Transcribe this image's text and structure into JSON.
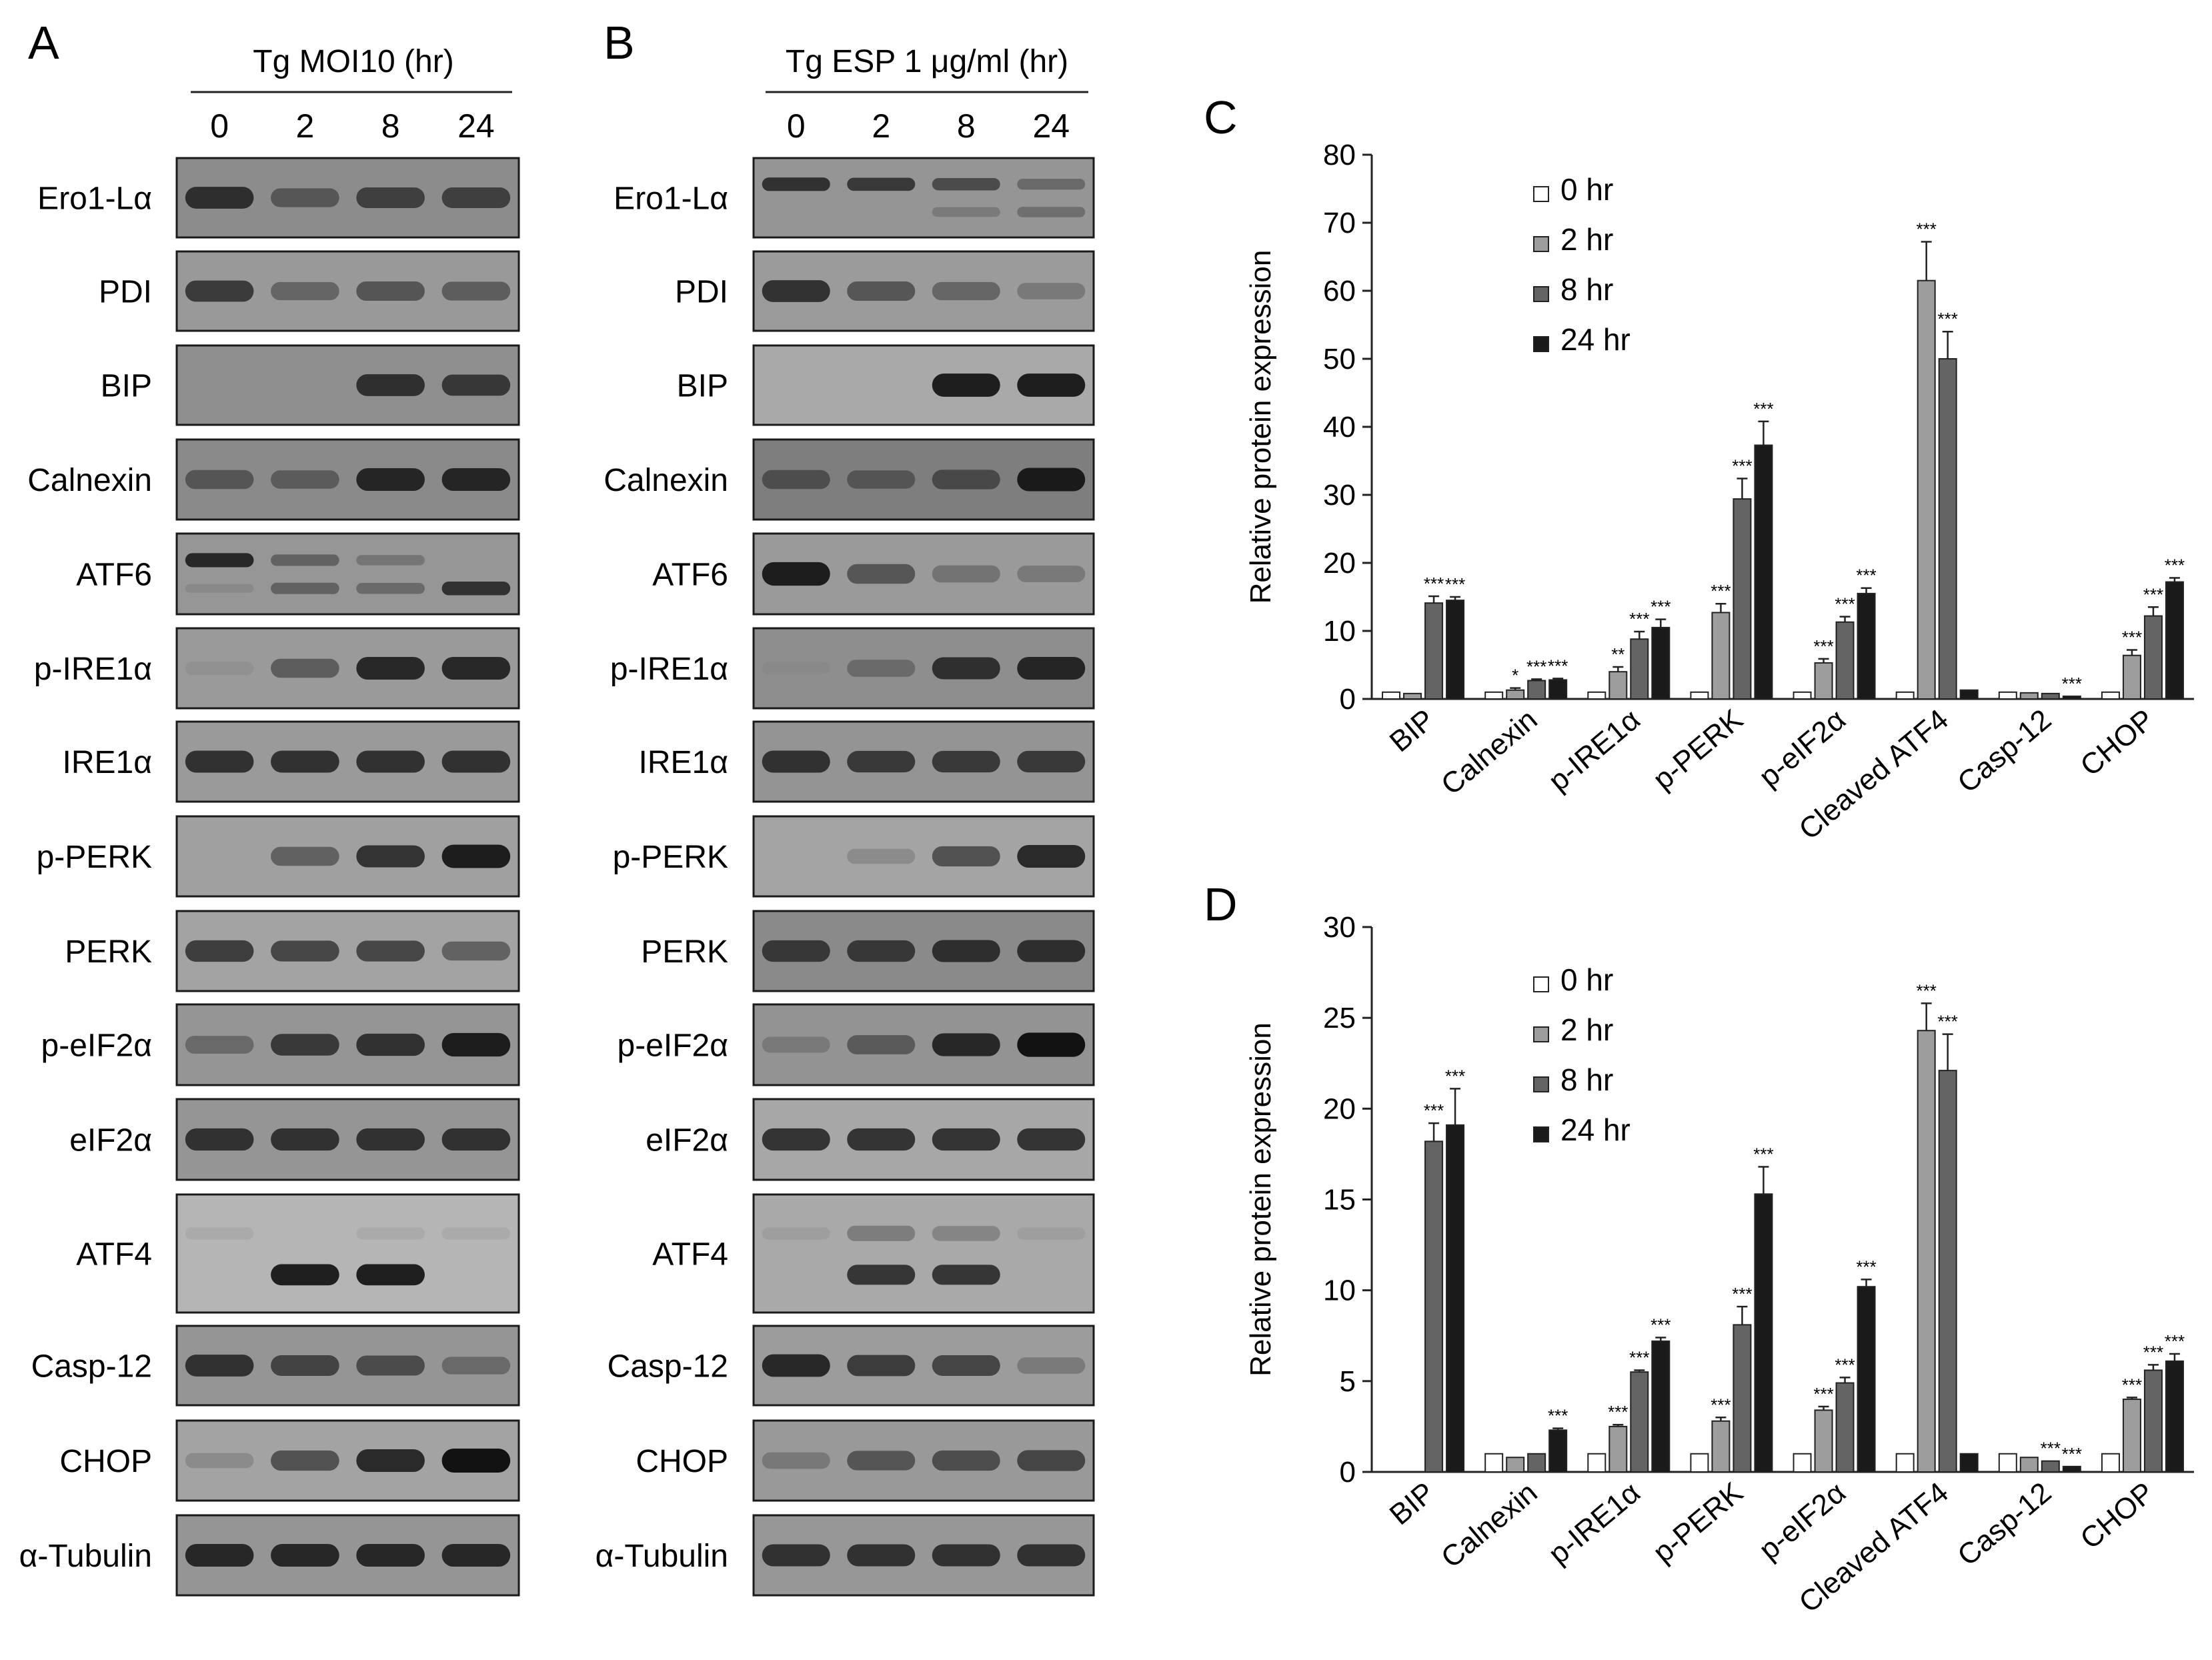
{
  "blot_panels": [
    {
      "label": "A",
      "header": "Tg MOI10 (hr)",
      "timepoints": [
        "0",
        "2",
        "8",
        "24"
      ],
      "rows": [
        {
          "label": "Ero1-Lα",
          "bg": "#8c8c8c",
          "bands": [
            [
              0.85
            ],
            [
              0.6
            ],
            [
              0.75
            ],
            [
              0.75
            ]
          ]
        },
        {
          "label": "PDI",
          "bg": "#999999",
          "bands": [
            [
              0.8
            ],
            [
              0.55
            ],
            [
              0.65
            ],
            [
              0.6
            ]
          ]
        },
        {
          "label": "BIP",
          "bg": "#8f8f8f",
          "bands": [
            [
              0
            ],
            [
              0
            ],
            [
              0.85
            ],
            [
              0.8
            ]
          ]
        },
        {
          "label": "Calnexin",
          "bg": "#8a8a8a",
          "bands": [
            [
              0.6
            ],
            [
              0.55
            ],
            [
              0.9
            ],
            [
              0.9
            ]
          ]
        },
        {
          "label": "ATF6",
          "bg": "#969696",
          "bands": [
            [
              0.9,
              0.2
            ],
            [
              0.55,
              0.55
            ],
            [
              0.4,
              0.5
            ],
            [
              0,
              0.85
            ]
          ]
        },
        {
          "label": "p-IRE1α",
          "bg": "#9a9a9a",
          "bands": [
            [
              0.15
            ],
            [
              0.6
            ],
            [
              0.9
            ],
            [
              0.9
            ]
          ]
        },
        {
          "label": "IRE1α",
          "bg": "#9a9a9a",
          "bands": [
            [
              0.85
            ],
            [
              0.85
            ],
            [
              0.85
            ],
            [
              0.85
            ]
          ]
        },
        {
          "label": "p-PERK",
          "bg": "#a0a0a0",
          "bands": [
            [
              0
            ],
            [
              0.6
            ],
            [
              0.85
            ],
            [
              0.95
            ]
          ]
        },
        {
          "label": "PERK",
          "bg": "#a3a3a3",
          "bands": [
            [
              0.8
            ],
            [
              0.75
            ],
            [
              0.75
            ],
            [
              0.6
            ]
          ]
        },
        {
          "label": "p-eIF2α",
          "bg": "#959595",
          "bands": [
            [
              0.5
            ],
            [
              0.8
            ],
            [
              0.85
            ],
            [
              0.95
            ]
          ]
        },
        {
          "label": "eIF2α",
          "bg": "#959595",
          "bands": [
            [
              0.85
            ],
            [
              0.85
            ],
            [
              0.85
            ],
            [
              0.85
            ]
          ]
        },
        {
          "label": "ATF4",
          "bg": "#b5b5b5",
          "bands": [
            [
              0.15,
              0
            ],
            [
              0,
              0.95
            ],
            [
              0.15,
              0.95
            ],
            [
              0.15,
              0
            ]
          ]
        },
        {
          "label": "Casp-12",
          "bg": "#959595",
          "bands": [
            [
              0.85
            ],
            [
              0.75
            ],
            [
              0.7
            ],
            [
              0.5
            ]
          ]
        },
        {
          "label": "CHOP",
          "bg": "#a3a3a3",
          "bands": [
            [
              0.3
            ],
            [
              0.7
            ],
            [
              0.9
            ],
            [
              1.0
            ]
          ]
        },
        {
          "label": "α-Tubulin",
          "bg": "#959595",
          "bands": [
            [
              0.9
            ],
            [
              0.9
            ],
            [
              0.9
            ],
            [
              0.9
            ]
          ]
        }
      ]
    },
    {
      "label": "B",
      "header": "Tg ESP 1 μg/ml (hr)",
      "timepoints": [
        "0",
        "2",
        "8",
        "24"
      ],
      "rows": [
        {
          "label": "Ero1-Lα",
          "bg": "#959595",
          "bands": [
            [
              0.85,
              0
            ],
            [
              0.8,
              0
            ],
            [
              0.7,
              0.35
            ],
            [
              0.5,
              0.45
            ]
          ]
        },
        {
          "label": "PDI",
          "bg": "#9b9b9b",
          "bands": [
            [
              0.85
            ],
            [
              0.65
            ],
            [
              0.55
            ],
            [
              0.4
            ]
          ]
        },
        {
          "label": "BIP",
          "bg": "#a9a9a9",
          "bands": [
            [
              0
            ],
            [
              0
            ],
            [
              0.95
            ],
            [
              0.95
            ]
          ]
        },
        {
          "label": "Calnexin",
          "bg": "#7e7e7e",
          "bands": [
            [
              0.6
            ],
            [
              0.55
            ],
            [
              0.65
            ],
            [
              0.95
            ]
          ]
        },
        {
          "label": "ATF6",
          "bg": "#9a9a9a",
          "bands": [
            [
              0.95
            ],
            [
              0.65
            ],
            [
              0.45
            ],
            [
              0.4
            ]
          ]
        },
        {
          "label": "p-IRE1α",
          "bg": "#8e8e8e",
          "bands": [
            [
              0.1
            ],
            [
              0.45
            ],
            [
              0.85
            ],
            [
              0.9
            ]
          ]
        },
        {
          "label": "IRE1α",
          "bg": "#949494",
          "bands": [
            [
              0.85
            ],
            [
              0.8
            ],
            [
              0.8
            ],
            [
              0.8
            ]
          ]
        },
        {
          "label": "p-PERK",
          "bg": "#a4a4a4",
          "bands": [
            [
              0
            ],
            [
              0.3
            ],
            [
              0.7
            ],
            [
              0.9
            ]
          ]
        },
        {
          "label": "PERK",
          "bg": "#8a8a8a",
          "bands": [
            [
              0.8
            ],
            [
              0.8
            ],
            [
              0.85
            ],
            [
              0.85
            ]
          ]
        },
        {
          "label": "p-eIF2α",
          "bg": "#939393",
          "bands": [
            [
              0.35
            ],
            [
              0.6
            ],
            [
              0.9
            ],
            [
              1.0
            ]
          ]
        },
        {
          "label": "eIF2α",
          "bg": "#a7a7a7",
          "bands": [
            [
              0.85
            ],
            [
              0.85
            ],
            [
              0.85
            ],
            [
              0.85
            ]
          ]
        },
        {
          "label": "ATF4",
          "bg": "#a9a9a9",
          "bands": [
            [
              0.15,
              0
            ],
            [
              0.45,
              0.85
            ],
            [
              0.4,
              0.85
            ],
            [
              0.15,
              0
            ]
          ]
        },
        {
          "label": "Casp-12",
          "bg": "#9c9c9c",
          "bands": [
            [
              0.9
            ],
            [
              0.8
            ],
            [
              0.75
            ],
            [
              0.4
            ]
          ]
        },
        {
          "label": "CHOP",
          "bg": "#999999",
          "bands": [
            [
              0.4
            ],
            [
              0.65
            ],
            [
              0.7
            ],
            [
              0.75
            ]
          ]
        },
        {
          "label": "α-Tubulin",
          "bg": "#979797",
          "bands": [
            [
              0.85
            ],
            [
              0.85
            ],
            [
              0.85
            ],
            [
              0.85
            ]
          ]
        }
      ]
    }
  ],
  "chart_data": [
    {
      "label": "C",
      "type": "bar",
      "ylabel": "Relative protein expression",
      "ylim": [
        0,
        80
      ],
      "yticks": [
        0,
        10,
        20,
        30,
        40,
        50,
        60,
        70,
        80
      ],
      "categories": [
        "BIP",
        "Calnexin",
        "p-IRE1α",
        "p-PERK",
        "p-eIF2α",
        "Cleaved ATF4",
        "Casp-12",
        "CHOP"
      ],
      "legend_position": "top-left",
      "series": [
        {
          "name": "0 hr",
          "color": "#ffffff",
          "values": [
            1,
            1,
            1,
            1,
            1,
            1,
            1,
            1
          ],
          "errors": [
            0,
            0,
            0,
            0,
            0,
            0,
            0,
            0
          ],
          "sig": [
            "",
            "",
            "",
            "",
            "",
            "",
            "",
            ""
          ]
        },
        {
          "name": "2 hr",
          "color": "#9d9d9d",
          "values": [
            0.8,
            1.3,
            4.0,
            12.7,
            5.3,
            61.5,
            0.9,
            6.4
          ],
          "errors": [
            0,
            0.3,
            0.7,
            1.3,
            0.6,
            5.7,
            0,
            0.8
          ],
          "sig": [
            "",
            "*",
            "**",
            "***",
            "***",
            "***",
            "",
            "***"
          ]
        },
        {
          "name": "8 hr",
          "color": "#646464",
          "values": [
            14.1,
            2.7,
            8.8,
            29.4,
            11.3,
            50.0,
            0.8,
            12.2
          ],
          "errors": [
            1.0,
            0.2,
            1.1,
            3.0,
            0.8,
            4.0,
            0,
            1.3
          ],
          "sig": [
            "***",
            "***",
            "***",
            "***",
            "***",
            "***",
            "",
            "***"
          ]
        },
        {
          "name": "24 hr",
          "color": "#1a1a1a",
          "values": [
            14.5,
            2.8,
            10.5,
            37.3,
            15.5,
            1.3,
            0.4,
            17.2
          ],
          "errors": [
            0.5,
            0.2,
            1.2,
            3.5,
            0.8,
            0,
            0,
            0.6
          ],
          "sig": [
            "***",
            "***",
            "***",
            "***",
            "***",
            "",
            "***",
            "***"
          ]
        }
      ]
    },
    {
      "label": "D",
      "type": "bar",
      "ylabel": "Relative protein expression",
      "ylim": [
        0,
        30
      ],
      "yticks": [
        0,
        5,
        10,
        15,
        20,
        25,
        30
      ],
      "categories": [
        "BIP",
        "Calnexin",
        "p-IRE1α",
        "p-PERK",
        "p-eIF2α",
        "Cleaved ATF4",
        "Casp-12",
        "CHOP"
      ],
      "legend_position": "top-left",
      "series": [
        {
          "name": "0 hr",
          "color": "#ffffff",
          "values": [
            0,
            1,
            1,
            1,
            1,
            1,
            1,
            1
          ],
          "errors": [
            0,
            0,
            0,
            0,
            0,
            0,
            0,
            0
          ],
          "sig": [
            "",
            "",
            "",
            "",
            "",
            "",
            "",
            ""
          ]
        },
        {
          "name": "2 hr",
          "color": "#9d9d9d",
          "values": [
            0,
            0.8,
            2.5,
            2.8,
            3.4,
            24.3,
            0.8,
            4.0
          ],
          "errors": [
            0,
            0,
            0.1,
            0.2,
            0.2,
            1.5,
            0,
            0.1
          ],
          "sig": [
            "",
            "",
            "***",
            "***",
            "***",
            "***",
            "",
            "***"
          ]
        },
        {
          "name": "8 hr",
          "color": "#646464",
          "values": [
            18.2,
            1.0,
            5.5,
            8.1,
            4.9,
            22.1,
            0.6,
            5.6
          ],
          "errors": [
            1.0,
            0,
            0.1,
            1.0,
            0.3,
            2.0,
            0,
            0.3
          ],
          "sig": [
            "***",
            "",
            "***",
            "***",
            "***",
            "***",
            "***",
            "***"
          ]
        },
        {
          "name": "24 hr",
          "color": "#1a1a1a",
          "values": [
            19.1,
            2.3,
            7.2,
            15.3,
            10.2,
            1.0,
            0.3,
            6.1
          ],
          "errors": [
            2.0,
            0.1,
            0.2,
            1.5,
            0.4,
            0,
            0,
            0.4
          ],
          "sig": [
            "***",
            "***",
            "***",
            "***",
            "***",
            "",
            "***",
            "***"
          ]
        }
      ]
    }
  ]
}
